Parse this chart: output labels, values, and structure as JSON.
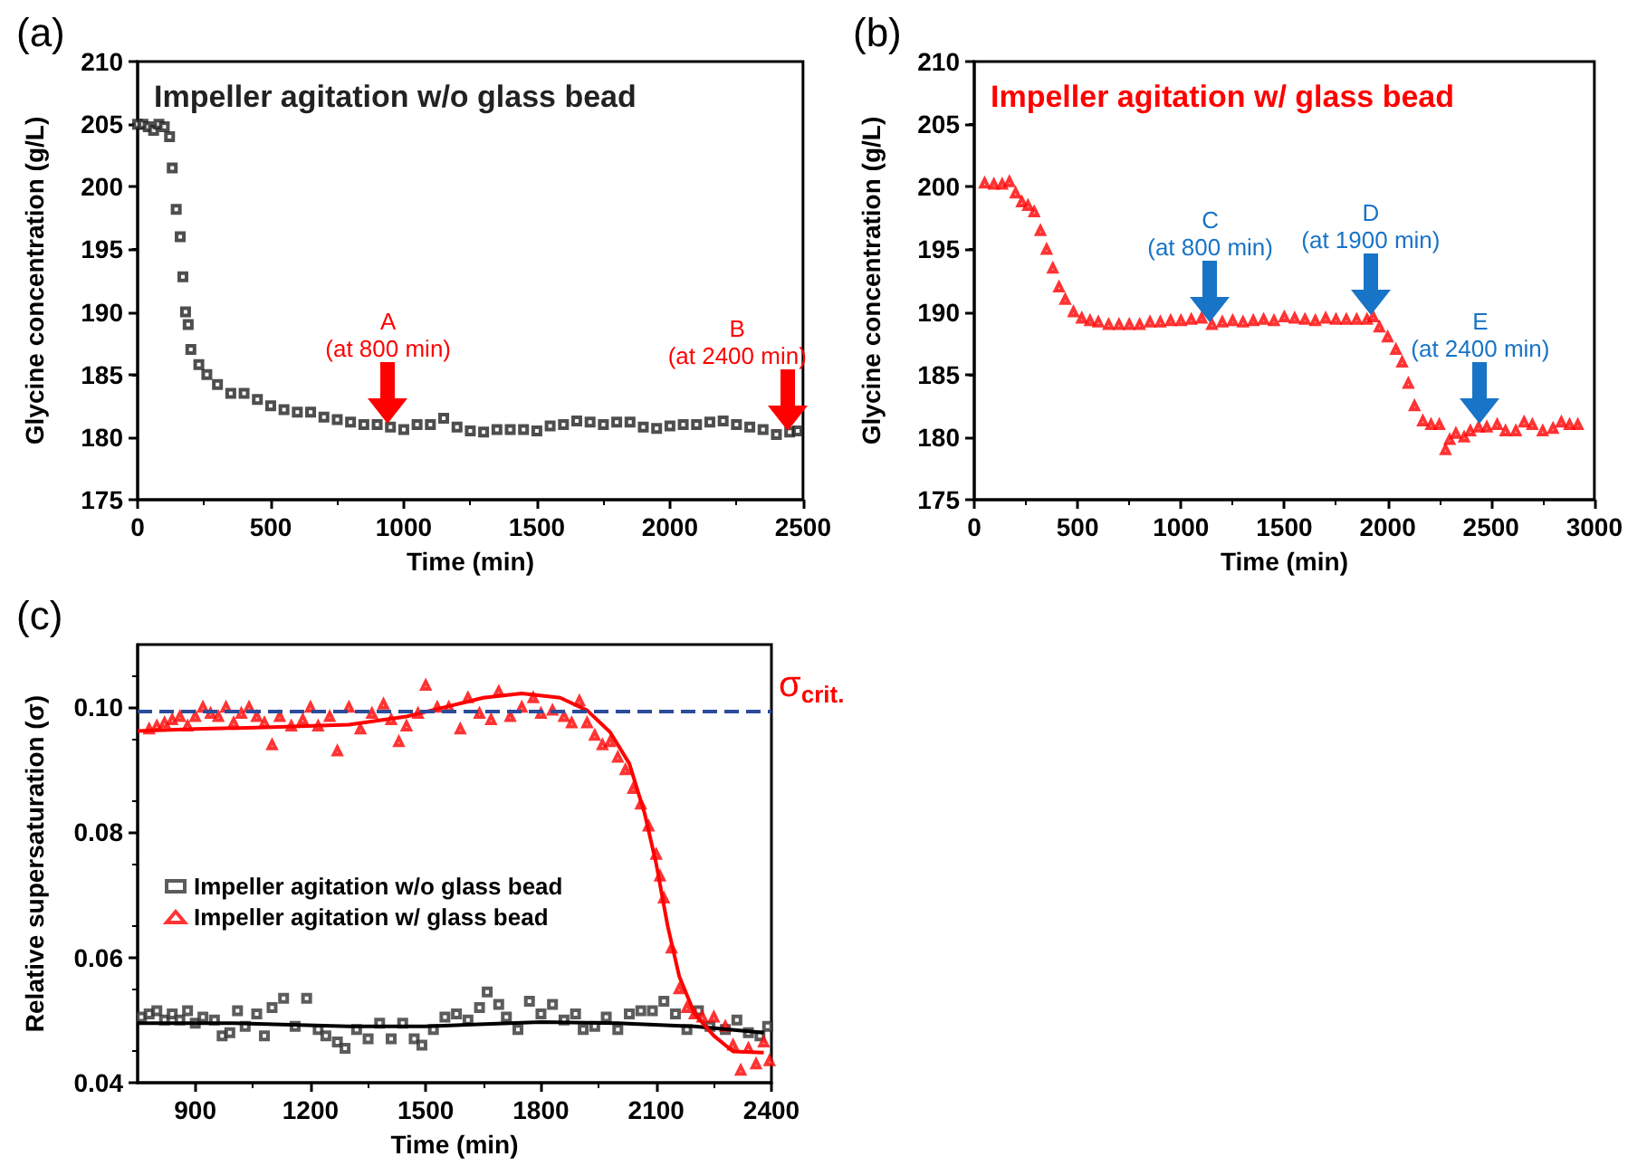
{
  "chart_data": [
    {
      "type": "scatter",
      "title": "(a)",
      "subtitle": "Impeller agitation w/o glass bead",
      "xlabel": "Time (min)",
      "ylabel": "Glycine concentration (g/L)",
      "xlim": [
        0,
        2500
      ],
      "xticks": [
        0,
        500,
        1000,
        1500,
        2000,
        2500
      ],
      "ylim": [
        175,
        210
      ],
      "yticks": [
        175,
        180,
        185,
        190,
        195,
        200,
        205,
        210
      ],
      "grid": false,
      "marker": "square",
      "series": [
        {
          "color": "#222222",
          "x": [
            0,
            20,
            40,
            60,
            80,
            100,
            120,
            130,
            145,
            160,
            170,
            180,
            190,
            200,
            230,
            260,
            300,
            350,
            400,
            450,
            500,
            550,
            600,
            650,
            700,
            750,
            800,
            850,
            900,
            950,
            1000,
            1050,
            1100,
            1150,
            1200,
            1250,
            1300,
            1350,
            1400,
            1450,
            1500,
            1550,
            1600,
            1650,
            1700,
            1750,
            1800,
            1850,
            1900,
            1950,
            2000,
            2050,
            2100,
            2150,
            2200,
            2250,
            2300,
            2350,
            2400,
            2450,
            2480
          ],
          "values": [
            205,
            205,
            204.8,
            204.5,
            205,
            204.8,
            204,
            201.5,
            198.2,
            196,
            192.8,
            190,
            189,
            187,
            185.8,
            185,
            184.2,
            183.5,
            183.5,
            183,
            182.5,
            182.2,
            182,
            182,
            181.6,
            181.4,
            181.2,
            181,
            181,
            180.8,
            180.6,
            181,
            181,
            181.5,
            180.8,
            180.5,
            180.4,
            180.6,
            180.6,
            180.6,
            180.5,
            180.9,
            181,
            181.3,
            181.2,
            181,
            181.2,
            181.2,
            180.8,
            180.7,
            180.9,
            181,
            181,
            181.2,
            181.3,
            181,
            180.8,
            180.6,
            180.2,
            180.4,
            180.5
          ]
        }
      ],
      "annotations": [
        {
          "text": "A\n(at 800 min)",
          "x": 940,
          "y": 181
        },
        {
          "text": "B\n(at 2400 min)",
          "x": 2440,
          "y": 180.4
        }
      ]
    },
    {
      "type": "scatter",
      "title": "(b)",
      "subtitle": "Impeller agitation w/ glass bead",
      "xlabel": "Time (min)",
      "ylabel": "Glycine concentration (g/L)",
      "xlim": [
        0,
        3000
      ],
      "xticks": [
        0,
        500,
        1000,
        1500,
        2000,
        2500,
        3000
      ],
      "ylim": [
        175,
        210
      ],
      "yticks": [
        175,
        180,
        185,
        190,
        195,
        200,
        205,
        210
      ],
      "grid": false,
      "marker": "triangle",
      "series": [
        {
          "color": "#ff0000",
          "x": [
            50,
            95,
            135,
            170,
            200,
            230,
            260,
            290,
            320,
            350,
            380,
            410,
            440,
            480,
            520,
            560,
            600,
            650,
            700,
            750,
            800,
            850,
            900,
            950,
            1000,
            1050,
            1100,
            1150,
            1200,
            1250,
            1300,
            1350,
            1400,
            1450,
            1500,
            1550,
            1600,
            1650,
            1700,
            1750,
            1800,
            1850,
            1900,
            1930,
            1960,
            2000,
            2040,
            2070,
            2100,
            2130,
            2170,
            2210,
            2250,
            2280,
            2300,
            2330,
            2370,
            2400,
            2440,
            2480,
            2530,
            2570,
            2620,
            2660,
            2700,
            2750,
            2800,
            2840,
            2880,
            2920
          ],
          "values": [
            200.3,
            200.2,
            200.2,
            200.4,
            199.5,
            198.8,
            198.5,
            198,
            196.5,
            195,
            193.5,
            192,
            191,
            190,
            189.5,
            189.3,
            189.2,
            189,
            189,
            189,
            189,
            189.2,
            189.2,
            189.3,
            189.3,
            189.4,
            189.5,
            189,
            189.2,
            189.3,
            189.2,
            189.3,
            189.4,
            189.3,
            189.6,
            189.5,
            189.4,
            189.3,
            189.5,
            189.4,
            189.4,
            189.4,
            189.4,
            189.6,
            188.8,
            188,
            187,
            186,
            184.3,
            182.5,
            181.3,
            181,
            181,
            179,
            179.8,
            180.3,
            180,
            180.5,
            180.8,
            180.8,
            181,
            180.5,
            180.5,
            181.2,
            181,
            180.5,
            180.7,
            181.2,
            181,
            181
          ]
        }
      ],
      "annotations": [
        {
          "text": "C\n(at 800 min)",
          "x": 1140,
          "y": 189
        },
        {
          "text": "D\n(at 1900 min)",
          "x": 1920,
          "y": 189.6
        },
        {
          "text": "E\n(at 2400 min)",
          "x": 2450,
          "y": 181
        }
      ]
    },
    {
      "type": "scatter",
      "title": "(c)",
      "xlabel": "Time (min)",
      "ylabel": "Relative supersaturation (σ)",
      "xlim": [
        750,
        2400
      ],
      "xticks": [
        900,
        1200,
        1500,
        1800,
        2100,
        2400
      ],
      "ylim": [
        0.04,
        0.11
      ],
      "yticks": [
        {
          "value": 0.04,
          "label": "0.04"
        },
        {
          "value": 0.06,
          "label": "0.06"
        },
        {
          "value": 0.08,
          "label": "0.08"
        },
        {
          "value": 0.1,
          "label": "0.10"
        }
      ],
      "grid": false,
      "legend": "bottom left",
      "ref_lines": [
        {
          "axis": "y",
          "value": 0.0995,
          "label": "σ$_{crit.}$",
          "color": "#2b4c9b",
          "line_style": "dashed"
        }
      ],
      "series": [
        {
          "name": "Impeller agitation w/o glass bead",
          "color": "#333333",
          "marker": "square",
          "x": [
            760,
            780,
            800,
            820,
            840,
            860,
            880,
            900,
            920,
            950,
            970,
            990,
            1010,
            1030,
            1060,
            1080,
            1100,
            1130,
            1160,
            1190,
            1220,
            1240,
            1270,
            1290,
            1320,
            1350,
            1380,
            1410,
            1440,
            1470,
            1490,
            1520,
            1550,
            1580,
            1610,
            1640,
            1660,
            1690,
            1710,
            1740,
            1770,
            1800,
            1830,
            1860,
            1890,
            1910,
            1940,
            1970,
            2000,
            2030,
            2060,
            2090,
            2120,
            2150,
            2180,
            2210,
            2240,
            2280,
            2310,
            2340,
            2370,
            2390
          ],
          "values": [
            0.0505,
            0.051,
            0.0515,
            0.05,
            0.051,
            0.05,
            0.0515,
            0.0495,
            0.0505,
            0.05,
            0.0475,
            0.048,
            0.0515,
            0.049,
            0.051,
            0.0475,
            0.052,
            0.0535,
            0.049,
            0.0535,
            0.0485,
            0.0475,
            0.0465,
            0.0455,
            0.0485,
            0.047,
            0.0495,
            0.047,
            0.0495,
            0.047,
            0.046,
            0.0485,
            0.0505,
            0.051,
            0.05,
            0.052,
            0.0545,
            0.0525,
            0.0505,
            0.0485,
            0.053,
            0.051,
            0.0525,
            0.05,
            0.051,
            0.0485,
            0.049,
            0.0505,
            0.0485,
            0.051,
            0.0515,
            0.0515,
            0.053,
            0.051,
            0.0485,
            0.0515,
            0.049,
            0.0485,
            0.05,
            0.048,
            0.0475,
            0.049
          ]
        },
        {
          "name": "Impeller agitation w/ glass bead",
          "color": "#ff0000",
          "marker": "triangle",
          "x": [
            780,
            800,
            820,
            840,
            860,
            880,
            900,
            920,
            940,
            960,
            980,
            1000,
            1020,
            1040,
            1060,
            1080,
            1100,
            1120,
            1150,
            1180,
            1200,
            1220,
            1250,
            1270,
            1300,
            1330,
            1360,
            1390,
            1410,
            1430,
            1450,
            1480,
            1500,
            1530,
            1560,
            1590,
            1610,
            1640,
            1670,
            1690,
            1720,
            1750,
            1780,
            1800,
            1830,
            1860,
            1880,
            1900,
            1920,
            1940,
            1960,
            1980,
            2000,
            2020,
            2040,
            2060,
            2080,
            2100,
            2110,
            2120,
            2140,
            2160,
            2180,
            2200,
            2220,
            2250,
            2280,
            2300,
            2320,
            2340,
            2360,
            2380,
            2395
          ],
          "values": [
            0.0965,
            0.097,
            0.0975,
            0.098,
            0.0985,
            0.097,
            0.0985,
            0.1,
            0.099,
            0.0985,
            0.1,
            0.0975,
            0.099,
            0.1,
            0.0985,
            0.0975,
            0.094,
            0.0985,
            0.097,
            0.098,
            0.1,
            0.097,
            0.0985,
            0.093,
            0.1,
            0.0965,
            0.099,
            0.1005,
            0.098,
            0.0945,
            0.097,
            0.099,
            0.1035,
            0.1,
            0.1,
            0.0965,
            0.1015,
            0.099,
            0.098,
            0.1025,
            0.0985,
            0.1,
            0.1015,
            0.099,
            0.0995,
            0.0985,
            0.0975,
            0.101,
            0.0975,
            0.0955,
            0.094,
            0.0945,
            0.092,
            0.09,
            0.087,
            0.0845,
            0.081,
            0.0765,
            0.073,
            0.0695,
            0.0615,
            0.055,
            0.052,
            0.051,
            0.0505,
            0.0505,
            0.049,
            0.046,
            0.042,
            0.0455,
            0.043,
            0.0465,
            0.0435
          ]
        },
        {
          "type": "line",
          "color": "#000000",
          "marker": "none",
          "x": [
            750,
            1000,
            1300,
            1500,
            1800,
            2000,
            2200,
            2380
          ],
          "values": [
            0.0495,
            0.0495,
            0.049,
            0.049,
            0.0497,
            0.0495,
            0.049,
            0.048
          ]
        },
        {
          "type": "line",
          "color": "#ff0000",
          "marker": "none",
          "x": [
            750,
            900,
            1100,
            1300,
            1450,
            1550,
            1650,
            1750,
            1850,
            1920,
            1980,
            2030,
            2070,
            2100,
            2130,
            2160,
            2200,
            2250,
            2300,
            2380
          ],
          "values": [
            0.0962,
            0.0965,
            0.0968,
            0.0972,
            0.0985,
            0.1,
            0.1015,
            0.1022,
            0.1015,
            0.0995,
            0.096,
            0.091,
            0.083,
            0.075,
            0.065,
            0.057,
            0.051,
            0.0475,
            0.045,
            0.0448
          ]
        }
      ]
    }
  ]
}
